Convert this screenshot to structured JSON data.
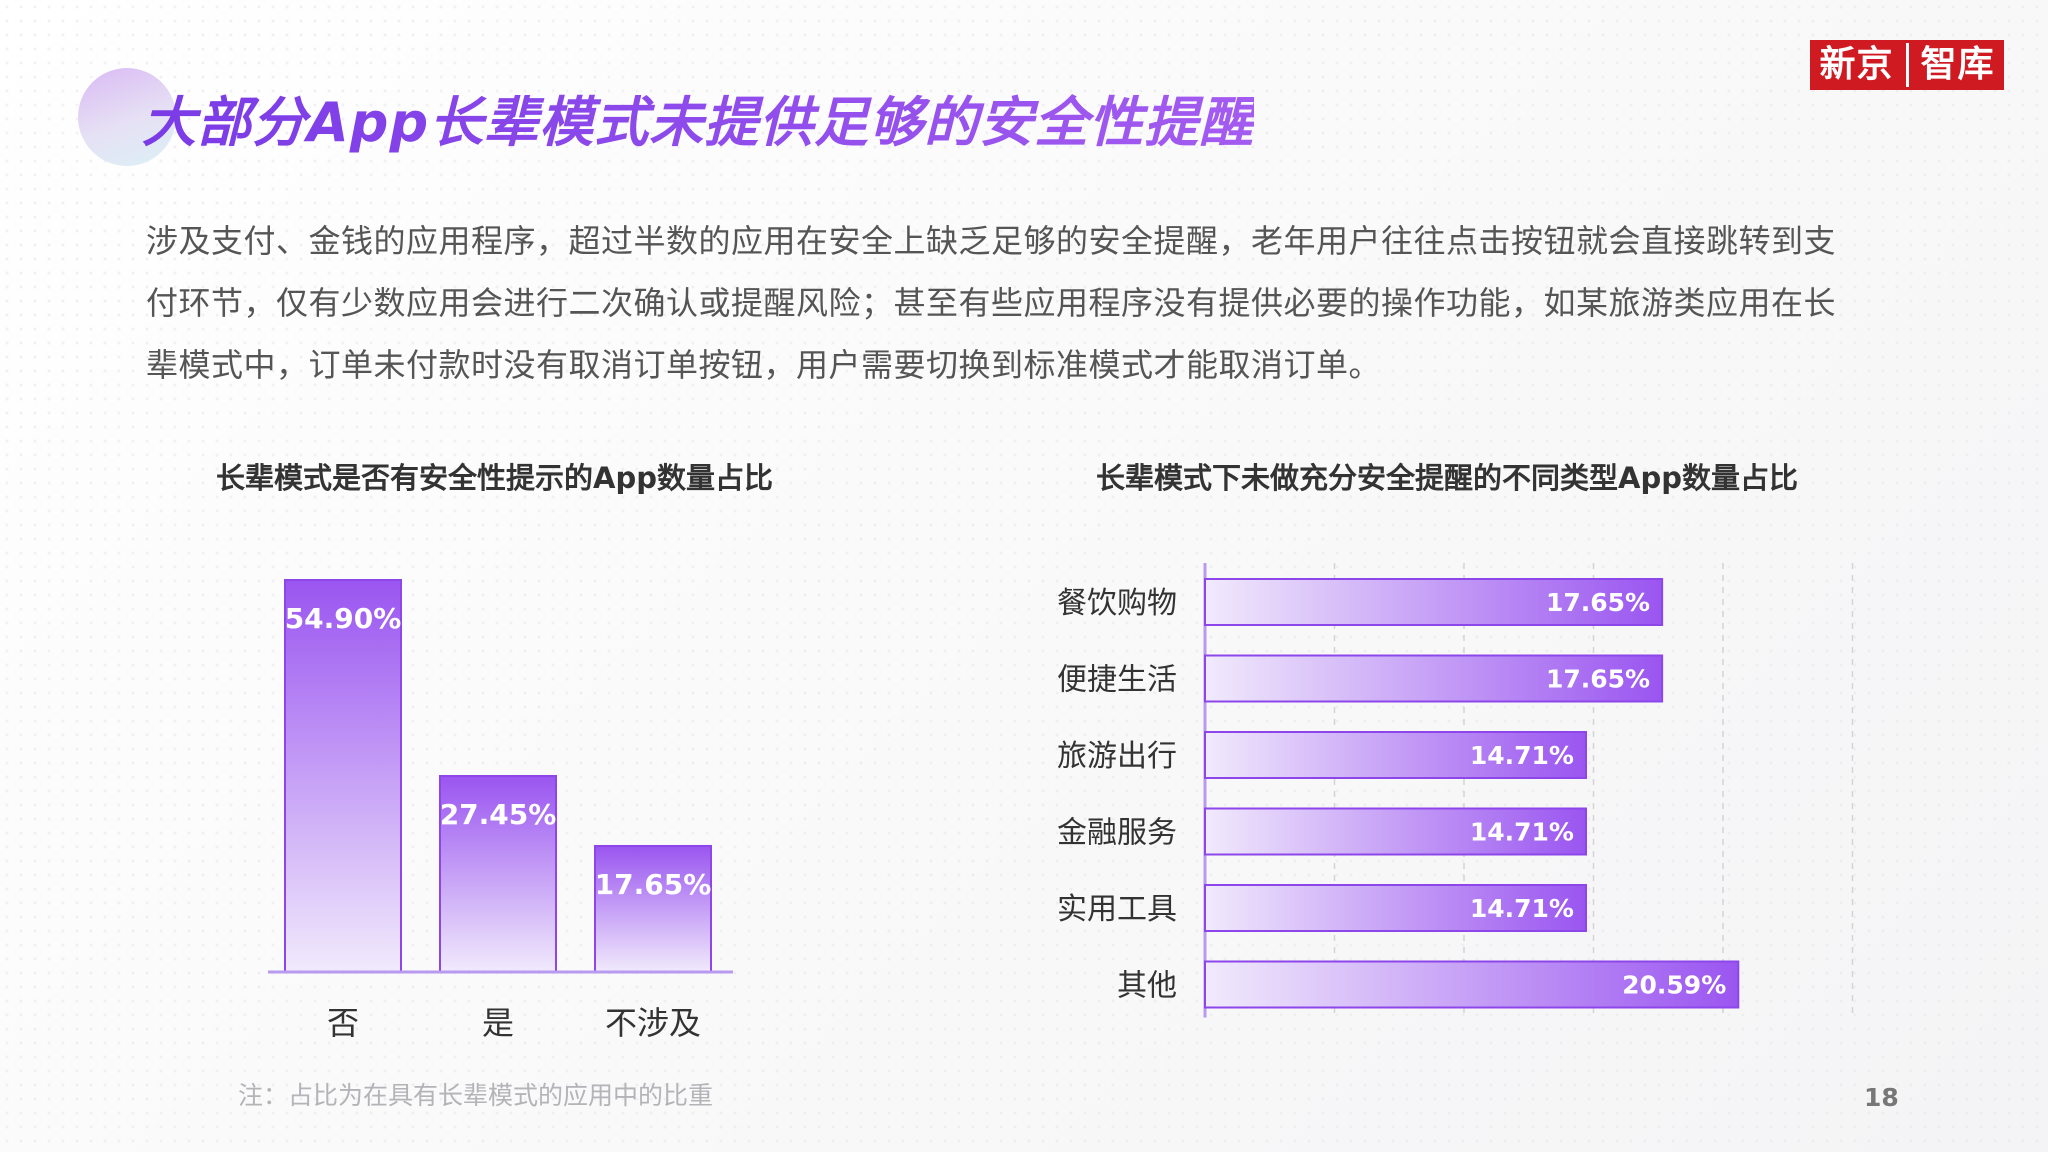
{
  "header": {
    "title": "大部分App长辈模式未提供足够的安全性提醒",
    "logo_left": "新京",
    "logo_right": "智库",
    "logo_color": "#cf1a21"
  },
  "description": "涉及支付、金钱的应用程序，超过半数的应用在安全上缺乏足够的安全提醒，老年用户往往点击按钮就会直接跳转到支付环节，仅有少数应用会进行二次确认或提醒风险；甚至有些应用程序没有提供必要的操作功能，如某旅游类应用在长辈模式中，订单未付款时没有取消订单按钮，用户需要切换到标准模式才能取消订单。",
  "chart_data": [
    {
      "type": "bar",
      "title": "长辈模式是否有安全性提示的App数量占比",
      "categories": [
        "否",
        "是",
        "不涉及"
      ],
      "values": [
        54.9,
        27.45,
        17.65
      ],
      "labels": [
        "54.90%",
        "27.45%",
        "17.65%"
      ],
      "ylim": [
        0,
        54.9
      ],
      "grid": false,
      "legend": "none",
      "colors": {
        "bar_top": "#9a55f0",
        "bar_bottom": "#efe6fc",
        "axis": "#b89af0"
      }
    },
    {
      "type": "bar",
      "orientation": "horizontal",
      "title": "长辈模式下未做充分安全提醒的不同类型App数量占比",
      "categories": [
        "餐饮购物",
        "便捷生活",
        "旅游出行",
        "金融服务",
        "实用工具",
        "其他"
      ],
      "values": [
        17.65,
        17.65,
        14.71,
        14.71,
        14.71,
        20.59
      ],
      "labels": [
        "17.65%",
        "17.65%",
        "14.71%",
        "14.71%",
        "14.71%",
        "20.59%"
      ],
      "xlim": [
        0,
        25
      ],
      "grid": true,
      "legend": "none",
      "colors": {
        "bar_left": "#efe6fc",
        "bar_right": "#9a55f0",
        "axis": "#b89af0"
      }
    }
  ],
  "footer": {
    "note": "注：占比为在具有长辈模式的应用中的比重",
    "page_number": "18"
  }
}
